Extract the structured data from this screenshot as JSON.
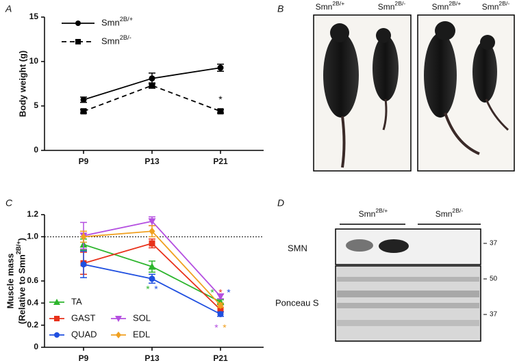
{
  "panel_labels": [
    "A",
    "B",
    "C",
    "D"
  ],
  "chart_data": [
    {
      "type": "line",
      "ylabel": "Body weight  (g)",
      "categories": [
        "P9",
        "P13",
        "P21"
      ],
      "series": [
        {
          "name": "Smn2B/+",
          "color": "#000000",
          "marker": "circle",
          "linestyle": "solid",
          "values": [
            5.7,
            8.1,
            9.3
          ],
          "errors": [
            0.3,
            0.6,
            0.4
          ]
        },
        {
          "name": "Smn2B/-",
          "color": "#000000",
          "marker": "square",
          "linestyle": "dashed",
          "values": [
            4.4,
            7.3,
            4.4
          ],
          "errors": [
            0.2,
            0.3,
            0.2
          ]
        }
      ],
      "ylim": [
        0,
        15
      ],
      "yticks": [
        0,
        5,
        10,
        15
      ],
      "legend": "upper left",
      "annotations": [
        {
          "text": "*",
          "x": "P21",
          "y": 5.9,
          "color": "#000000"
        }
      ]
    },
    {
      "type": "line",
      "ylabel": [
        "Muscle mass",
        "(Relative to Smn2B/+)"
      ],
      "categories": [
        "P9",
        "P13",
        "P21"
      ],
      "series": [
        {
          "name": "TA",
          "color": "#2db52d",
          "marker": "triangle",
          "linestyle": "solid",
          "values": [
            0.93,
            0.73,
            0.41
          ],
          "errors": [
            0.05,
            0.05,
            0.02
          ]
        },
        {
          "name": "GAST",
          "color": "#e8311a",
          "marker": "square",
          "linestyle": "solid",
          "values": [
            0.76,
            0.94,
            0.34
          ],
          "errors": [
            0.1,
            0.04,
            0.02
          ]
        },
        {
          "name": "QUAD",
          "color": "#1f4fe0",
          "marker": "circle",
          "linestyle": "solid",
          "values": [
            0.75,
            0.62,
            0.3
          ],
          "errors": [
            0.12,
            0.04,
            0.02
          ]
        },
        {
          "name": "SOL",
          "color": "#b44fe0",
          "marker": "triangle-down",
          "linestyle": "solid",
          "values": [
            1.01,
            1.14,
            0.46
          ],
          "errors": [
            0.12,
            0.04,
            0.02
          ]
        },
        {
          "name": "EDL",
          "color": "#f0a020",
          "marker": "diamond",
          "linestyle": "solid",
          "values": [
            1.0,
            1.05,
            0.38
          ],
          "errors": [
            0.05,
            0.05,
            0.02
          ]
        }
      ],
      "ylim": [
        0,
        1.2
      ],
      "yticks": [
        0,
        0.2,
        0.4,
        0.6,
        {
          "value": 1,
          "label": "1.0"
        },
        1.2
      ],
      "reference_line": 1,
      "legend": "lower left",
      "annotations": [
        {
          "text": "*",
          "x": "P13",
          "y": 0.54,
          "color": "#2db52d"
        },
        {
          "text": "*",
          "x": "P13",
          "y": 0.54,
          "color": "#1f4fe0"
        },
        {
          "text": "*",
          "x": "P21",
          "y": 0.51,
          "color": "#2db52d"
        },
        {
          "text": "*",
          "x": "P21",
          "y": 0.51,
          "color": "#e8311a"
        },
        {
          "text": "*",
          "x": "P21",
          "y": 0.51,
          "color": "#1f4fe0"
        },
        {
          "text": "*",
          "x": "P21",
          "y": 0.19,
          "color": "#b44fe0"
        },
        {
          "text": "*",
          "x": "P21",
          "y": 0.19,
          "color": "#f0a020"
        }
      ]
    }
  ],
  "photo": {
    "labels": [
      "Smn2B/+",
      "Smn2B/-",
      "Smn2B/+",
      "Smn2B/-"
    ]
  },
  "blot": {
    "groups": [
      "Smn2B/+",
      "Smn2B/-"
    ],
    "rows": [
      "SMN",
      "Ponceau S"
    ],
    "markers": [
      37,
      50,
      37
    ]
  }
}
